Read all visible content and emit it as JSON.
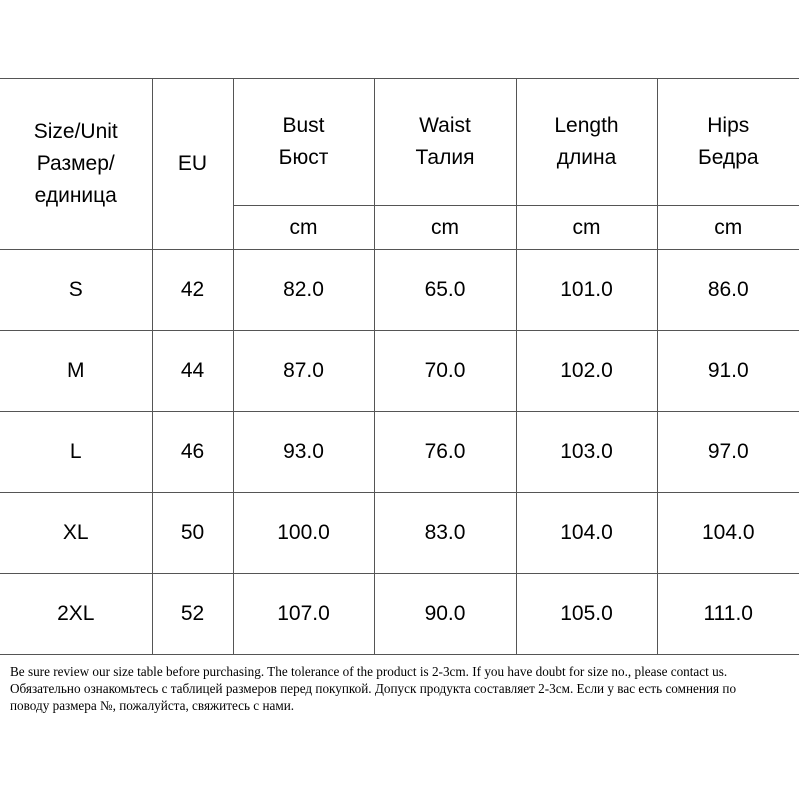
{
  "table": {
    "header": {
      "size_unit": [
        "Size/Unit",
        "Размер/",
        "единица"
      ],
      "eu": "EU",
      "measures": [
        {
          "en": "Bust",
          "ru": "Бюст",
          "unit": "cm"
        },
        {
          "en": "Waist",
          "ru": "Талия",
          "unit": "cm"
        },
        {
          "en": "Length",
          "ru": "длина",
          "unit": "cm"
        },
        {
          "en": "Hips",
          "ru": "Бедра",
          "unit": "cm"
        }
      ]
    },
    "rows": [
      {
        "size": "S",
        "eu": "42",
        "bust": "82.0",
        "waist": "65.0",
        "length": "101.0",
        "hips": "86.0"
      },
      {
        "size": "M",
        "eu": "44",
        "bust": "87.0",
        "waist": "70.0",
        "length": "102.0",
        "hips": "91.0"
      },
      {
        "size": "L",
        "eu": "46",
        "bust": "93.0",
        "waist": "76.0",
        "length": "103.0",
        "hips": "97.0"
      },
      {
        "size": "XL",
        "eu": "50",
        "bust": "100.0",
        "waist": "83.0",
        "length": "104.0",
        "hips": "104.0"
      },
      {
        "size": "2XL",
        "eu": "52",
        "bust": "107.0",
        "waist": "90.0",
        "length": "105.0",
        "hips": "111.0"
      }
    ]
  },
  "note": {
    "line1": "Be sure review our size table before purchasing. The tolerance of the product is 2-3cm. If you have doubt for size no., please contact us.",
    "line2": "Обязательно ознакомьтесь с таблицей размеров перед покупкой. Допуск продукта составляет 2-3см. Если у вас есть сомнения по",
    "line3": "поводу размера №, пожалуйста, свяжитесь с нами."
  }
}
